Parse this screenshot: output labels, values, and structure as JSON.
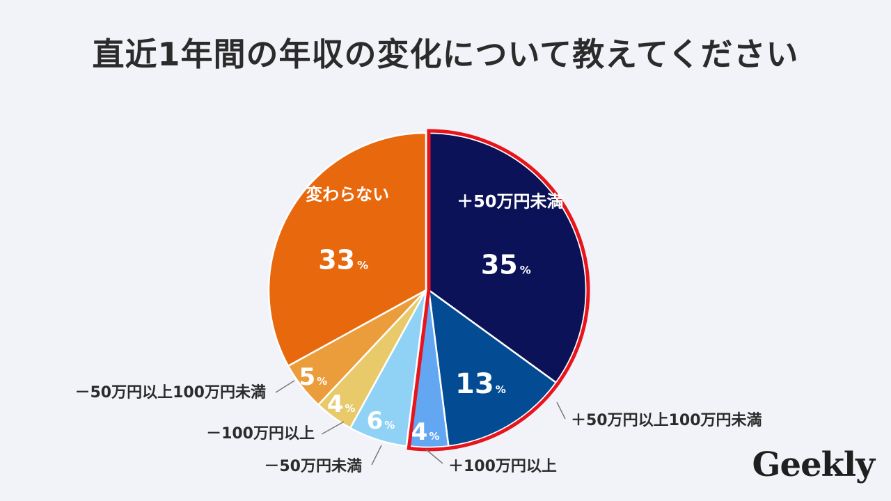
{
  "title": "直近1年間の年収の変化について教えてください",
  "logo_text": "Geekly",
  "chart_data": {
    "type": "pie",
    "title": "直近1年間の年収の変化について教えてください",
    "unit": "%",
    "start_angle_deg": 0,
    "direction": "clockwise",
    "highlight_group": [
      "＋50万円未満",
      "＋50万円以上100万円未満",
      "＋100万円以上"
    ],
    "highlight_color": "#e8141c",
    "slices": [
      {
        "name": "＋50万円未満",
        "value": 35,
        "color": "#0b1257",
        "label_inside": true
      },
      {
        "name": "＋50万円以上100万円未満",
        "value": 13,
        "color": "#034b93",
        "label_inside": false
      },
      {
        "name": "＋100万円以上",
        "value": 4,
        "color": "#63a7f2",
        "label_inside": false
      },
      {
        "name": "－50万円未満",
        "value": 6,
        "color": "#8fd2f6",
        "label_inside": false
      },
      {
        "name": "－100万円以上",
        "value": 4,
        "color": "#e9ca6a",
        "label_inside": false
      },
      {
        "name": "－50万円以上100万円未満",
        "value": 5,
        "color": "#eb9c3b",
        "label_inside": false
      },
      {
        "name": "変わらない",
        "value": 33,
        "color": "#e8680e",
        "label_inside": true
      }
    ]
  }
}
